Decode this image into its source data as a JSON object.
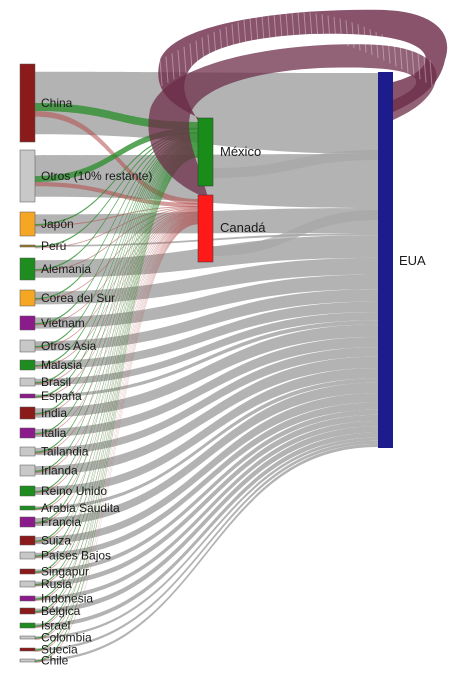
{
  "diagram": {
    "type": "sankey",
    "colors": {
      "link": "#a6a6a6",
      "china_link": "#b24a4a",
      "mexico_link": "#2f8f2f",
      "loop": "#6e2d4a",
      "usa": "#1c1c8c",
      "mexico": "#1a8c1a",
      "canada": "#ff1a1a"
    },
    "sources": [
      {
        "label": "China",
        "color": "#8b1a1a"
      },
      {
        "label": "Otros (10% restante)",
        "color": "#c8c8c8"
      },
      {
        "label": "Japón",
        "color": "#f5a623"
      },
      {
        "label": "Perú",
        "color": "#a07820"
      },
      {
        "label": "Alemania",
        "color": "#1e8c1e"
      },
      {
        "label": "Corea del Sur",
        "color": "#f5a623"
      },
      {
        "label": "Vietnam",
        "color": "#8b1a8b"
      },
      {
        "label": "Otros Asia",
        "color": "#c8c8c8"
      },
      {
        "label": "Malasia",
        "color": "#1e8c1e"
      },
      {
        "label": "Brasil",
        "color": "#c8c8c8"
      },
      {
        "label": "España",
        "color": "#8b1a8b"
      },
      {
        "label": "India",
        "color": "#8b1a1a"
      },
      {
        "label": "Italia",
        "color": "#8b1a8b"
      },
      {
        "label": "Tailandia",
        "color": "#c8c8c8"
      },
      {
        "label": "Irlanda",
        "color": "#c8c8c8"
      },
      {
        "label": "Reino Unido",
        "color": "#1e8c1e"
      },
      {
        "label": "Arabia Saudita",
        "color": "#1e8c1e"
      },
      {
        "label": "Francia",
        "color": "#8b1a8b"
      },
      {
        "label": "Suiza",
        "color": "#8b1a1a"
      },
      {
        "label": "Países Bajos",
        "color": "#c8c8c8"
      },
      {
        "label": "Singapur",
        "color": "#8b1a1a"
      },
      {
        "label": "Rusia",
        "color": "#c8c8c8"
      },
      {
        "label": "Indonesia",
        "color": "#8b1a8b"
      },
      {
        "label": "Bélgica",
        "color": "#8b1a1a"
      },
      {
        "label": "Israel",
        "color": "#1e8c1e"
      },
      {
        "label": "Colombia",
        "color": "#c8c8c8"
      },
      {
        "label": "Suecia",
        "color": "#8b1a1a"
      },
      {
        "label": "Chile",
        "color": "#c8c8c8"
      }
    ],
    "intermediates": [
      {
        "label": "México"
      },
      {
        "label": "Canadá"
      }
    ],
    "target": {
      "label": "EUA"
    }
  }
}
